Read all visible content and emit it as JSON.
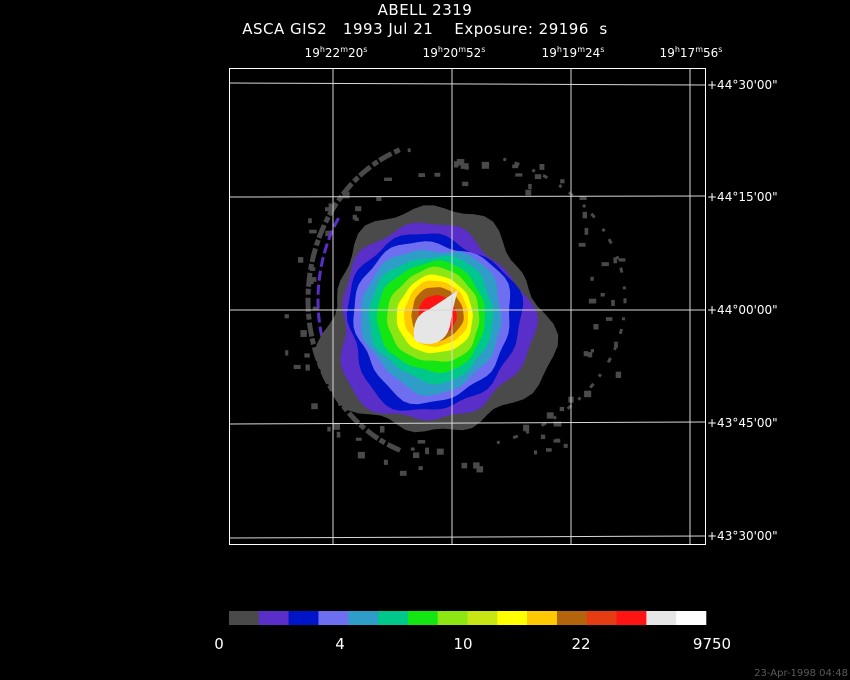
{
  "title": {
    "object": "ABELL 2319",
    "instrument_line": "ASCA GIS2   1993 Jul 21    Exposure: 29196  s"
  },
  "ra_ticks": [
    {
      "h": "19",
      "m": "22",
      "s": "20"
    },
    {
      "h": "19",
      "m": "20",
      "s": "52"
    },
    {
      "h": "19",
      "m": "19",
      "s": "24"
    },
    {
      "h": "19",
      "m": "17",
      "s": "56"
    }
  ],
  "dec_ticks": [
    "+44°30'00\"",
    "+44°15'00\"",
    "+44°00'00\"",
    "+43°45'00\"",
    "+43°30'00\""
  ],
  "colorbar": {
    "colors": [
      "#4a4a4a",
      "#5a2ec8",
      "#0014c8",
      "#6e6ef0",
      "#2e9ec8",
      "#00c88c",
      "#14e614",
      "#8ce614",
      "#c8e614",
      "#ffff00",
      "#ffc800",
      "#b4640a",
      "#e63c14",
      "#ff1414",
      "#e6e6e6",
      "#ffffff"
    ],
    "labels": [
      "0",
      "4",
      "10",
      "22",
      "9750"
    ]
  },
  "image_colors": {
    "contour_levels": [
      "#4a4a4a",
      "#5a2ec8",
      "#0014c8",
      "#6e6ef0",
      "#2e9ec8",
      "#00c88c",
      "#14e614",
      "#8ce614",
      "#ffff00",
      "#ffc800",
      "#b4640a",
      "#ff1414",
      "#e6e6e6"
    ],
    "grid": "#d8d8d8",
    "frame": "#ffffff"
  },
  "timestamp": "23-Apr-1998 04:48"
}
